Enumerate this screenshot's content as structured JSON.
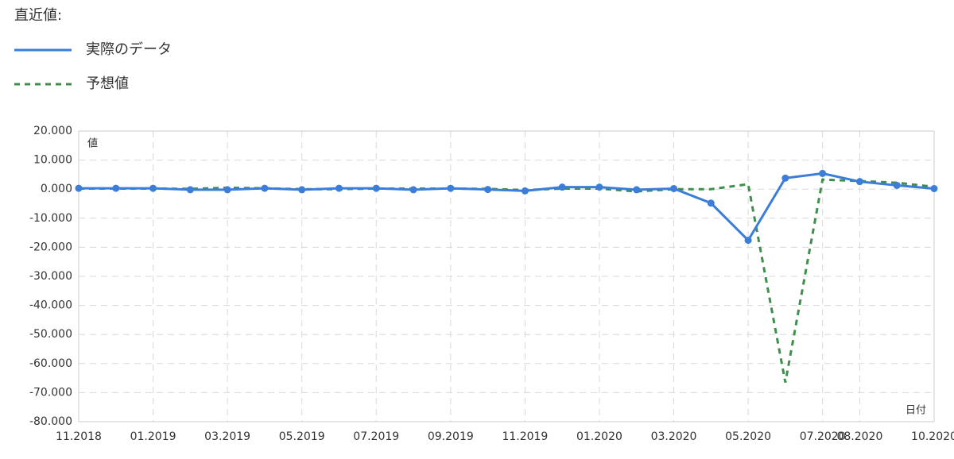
{
  "chart_data": {
    "type": "line",
    "legend_title": "直近値:",
    "y_label": "値",
    "x_label": "日付",
    "x": [
      "2018-11",
      "2018-12",
      "2019-01",
      "2019-02",
      "2019-03",
      "2019-04",
      "2019-05",
      "2019-06",
      "2019-07",
      "2019-08",
      "2019-09",
      "2019-10",
      "2019-11",
      "2019-12",
      "2020-01",
      "2020-02",
      "2020-03",
      "2020-04",
      "2020-05",
      "2020-06",
      "2020-07",
      "2020-08",
      "2020-09",
      "2020-10"
    ],
    "series": [
      {
        "name": "実際のデータ",
        "color": "#3b7dd8",
        "style": "solid",
        "markers": true,
        "values": [
          0.3,
          0.3,
          0.3,
          -0.2,
          -0.2,
          0.3,
          -0.2,
          0.3,
          0.3,
          -0.2,
          0.3,
          -0.1,
          -0.6,
          0.7,
          0.7,
          -0.2,
          0.2,
          -4.8,
          -17.6,
          3.8,
          5.4,
          2.6,
          1.3,
          0.2
        ]
      },
      {
        "name": "予想値",
        "color": "#3d8f4b",
        "style": "dashed",
        "markers": false,
        "values": [
          0.2,
          0.2,
          0.2,
          0.1,
          0.5,
          0.3,
          0.0,
          0.0,
          0.2,
          0.2,
          0.2,
          0.1,
          -0.3,
          0.2,
          0.2,
          -0.8,
          0.0,
          0.0,
          1.7,
          -66.5,
          3.3,
          2.8,
          2.2,
          0.8
        ]
      }
    ],
    "xlim": [
      "2018-11",
      "2020-10"
    ],
    "xticks": [
      {
        "value": "2018-11",
        "label": "11.2018"
      },
      {
        "value": "2019-01",
        "label": "01.2019"
      },
      {
        "value": "2019-03",
        "label": "03.2019"
      },
      {
        "value": "2019-05",
        "label": "05.2019"
      },
      {
        "value": "2019-07",
        "label": "07.2019"
      },
      {
        "value": "2019-09",
        "label": "09.2019"
      },
      {
        "value": "2019-11",
        "label": "11.2019"
      },
      {
        "value": "2020-01",
        "label": "01.2020"
      },
      {
        "value": "2020-03",
        "label": "03.2020"
      },
      {
        "value": "2020-05",
        "label": "05.2020"
      },
      {
        "value": "2020-07",
        "label": "07.2020"
      },
      {
        "value": "2020-08",
        "label": "08.2020"
      },
      {
        "value": "2020-10",
        "label": "10.2020"
      }
    ],
    "ylim": [
      -80,
      20
    ],
    "yticks": [
      {
        "value": 20,
        "label": "20.000"
      },
      {
        "value": 10,
        "label": "10.000"
      },
      {
        "value": 0,
        "label": "0.000"
      },
      {
        "value": -10,
        "label": "-10.000"
      },
      {
        "value": -20,
        "label": "-20.000"
      },
      {
        "value": -30,
        "label": "-30.000"
      },
      {
        "value": -40,
        "label": "-40.000"
      },
      {
        "value": -50,
        "label": "-50.000"
      },
      {
        "value": -60,
        "label": "-60.000"
      },
      {
        "value": -70,
        "label": "-70.000"
      },
      {
        "value": -80,
        "label": "-80.000"
      }
    ],
    "grid": true
  }
}
